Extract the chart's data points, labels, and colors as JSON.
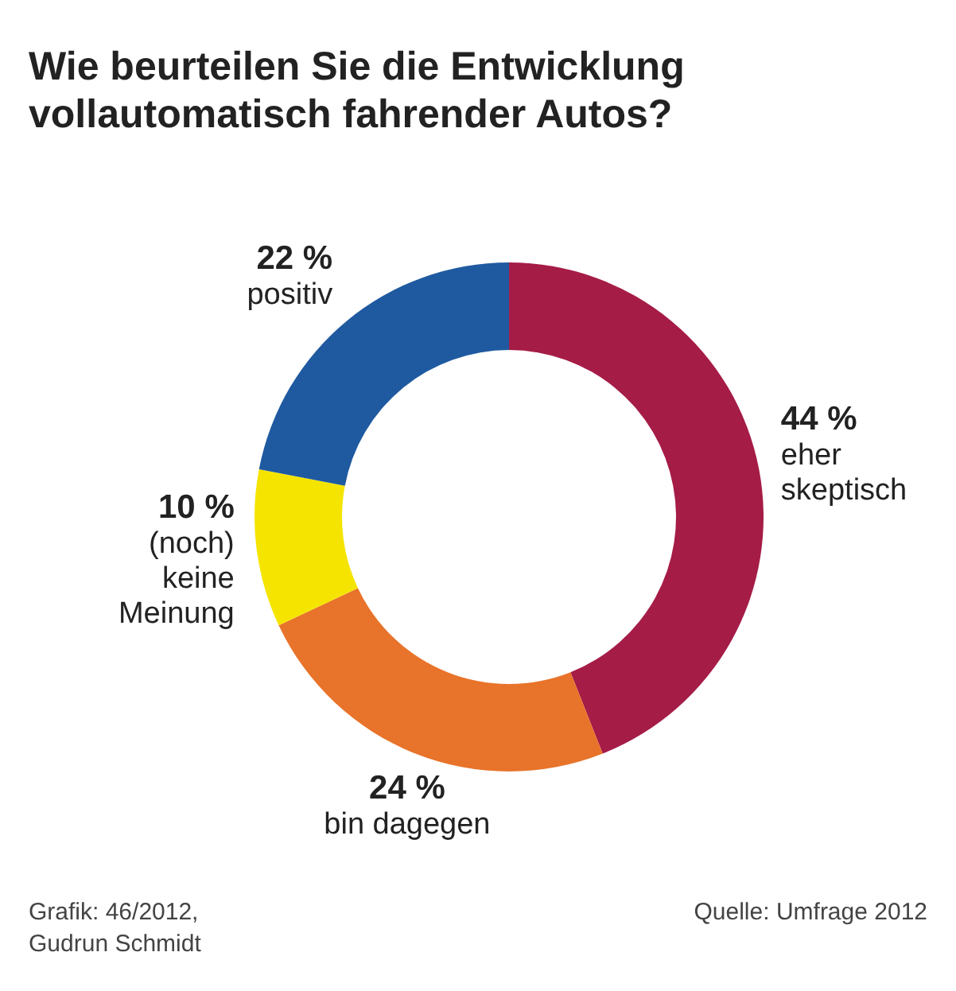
{
  "chart_data": {
    "type": "donut",
    "title": "Wie beurteilen Sie die Entwicklung\nvollautomatisch fahrender Autos?",
    "categories": [
      "eher\nskeptisch",
      "bin dagegen",
      "(noch)\nkeine\nMeinung",
      "positiv"
    ],
    "values": [
      44,
      24,
      10,
      22
    ],
    "value_labels": [
      "44 %",
      "24 %",
      "10 %",
      "22 %"
    ],
    "colors": [
      "#a51c47",
      "#e8732a",
      "#f5e400",
      "#1f5aa0"
    ],
    "legend": false,
    "annotations": [
      "Grafik: 46/2012,\nGudrun Schmidt",
      "Quelle: Umfrage 2012"
    ]
  }
}
